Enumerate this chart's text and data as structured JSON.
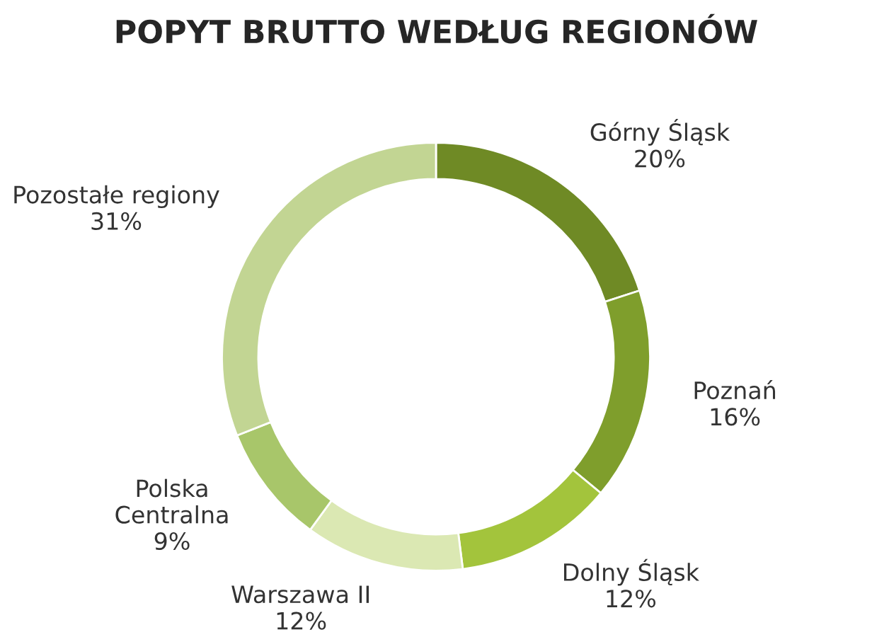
{
  "chart_data": {
    "type": "donut",
    "title": "POPYT BRUTTO WEDŁUG REGIONÓW",
    "categories": [
      "Górny Śląsk",
      "Poznań",
      "Dolny Śląsk",
      "Warszawa II",
      "Polska\nCentralna",
      "Pozostałe regiony"
    ],
    "values": [
      20,
      16,
      12,
      12,
      9,
      31
    ],
    "value_labels": [
      "20%",
      "16%",
      "12%",
      "12%",
      "9%",
      "31%"
    ],
    "colors": [
      "#6f8a25",
      "#7f9e2c",
      "#a3c43c",
      "#dbe8b3",
      "#a8c66a",
      "#c2d593"
    ]
  }
}
